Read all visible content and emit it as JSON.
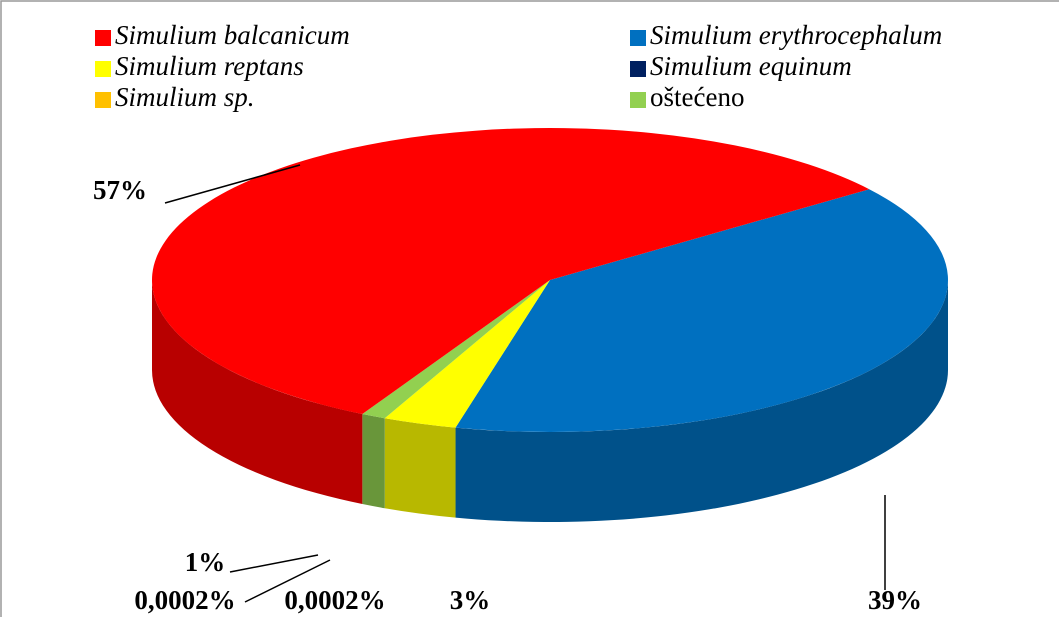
{
  "chart_data": {
    "type": "pie3d",
    "series": [
      {
        "name": "Simulium balcanicum",
        "color": "#ff0000"
      },
      {
        "name": "Simulium erythrocephalum",
        "color": "#0070c0"
      },
      {
        "name": "Simulium reptans",
        "color": "#ffff00"
      },
      {
        "name": "Simulium equinum",
        "color": "#002060"
      },
      {
        "name": "Simulium sp.",
        "color": "#ffc000"
      },
      {
        "name": "oštećeno",
        "color": "#92d050"
      }
    ],
    "values": [
      57,
      39,
      3,
      0.0002,
      0.0002,
      1
    ],
    "value_labels": [
      "57%",
      "39%",
      "3%",
      "0,0002%",
      "0,0002%",
      "1%"
    ]
  }
}
